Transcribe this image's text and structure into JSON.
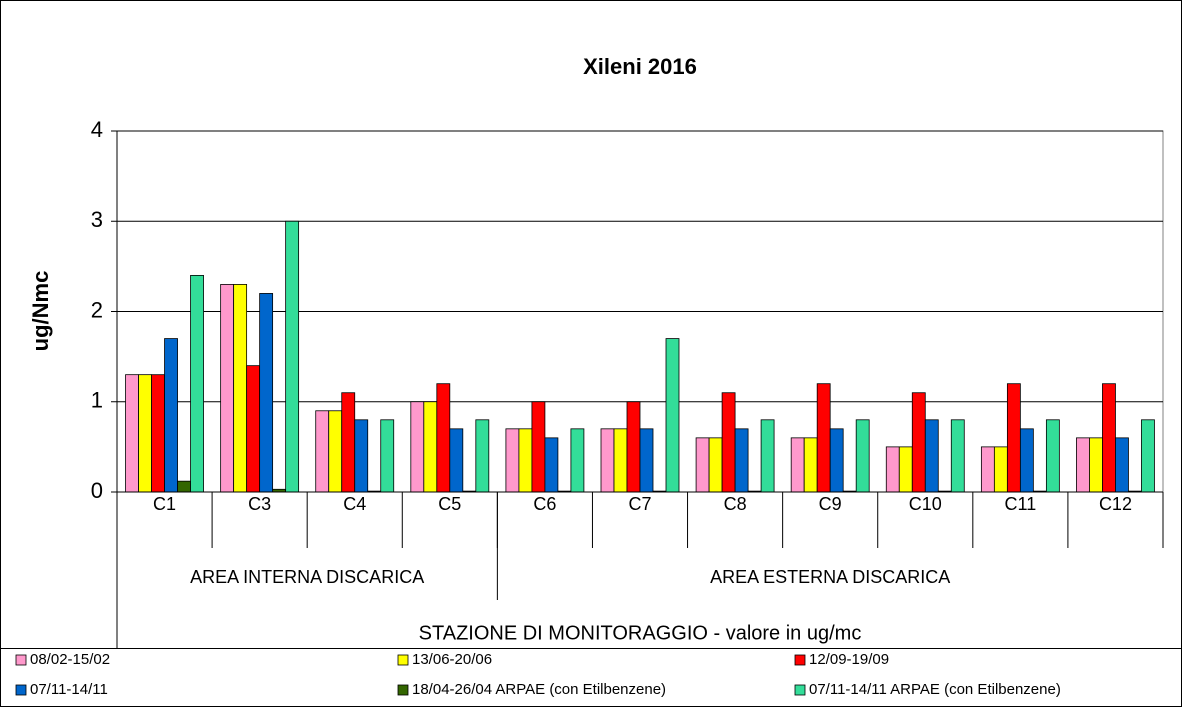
{
  "chart_data": {
    "type": "bar",
    "title": "Xileni 2016",
    "ylabel": "ug/Nmc",
    "xlabel": "STAZIONE DI MONITORAGGIO - valore in ug/mc",
    "categories": [
      "C1",
      "C3",
      "C4",
      "C5",
      "C6",
      "C7",
      "C8",
      "C9",
      "C10",
      "C11",
      "C12"
    ],
    "groups": [
      {
        "name": "AREA INTERNA DISCARICA",
        "categories": [
          "C1",
          "C3",
          "C4",
          "C5"
        ]
      },
      {
        "name": "AREA ESTERNA DISCARICA",
        "categories": [
          "C6",
          "C7",
          "C8",
          "C9",
          "C10",
          "C11",
          "C12"
        ]
      }
    ],
    "series": [
      {
        "name": "08/02-15/02",
        "color": "#ff99cc",
        "values": [
          1.3,
          2.3,
          0.9,
          1.0,
          0.7,
          0.7,
          0.6,
          0.6,
          0.5,
          0.5,
          0.6
        ]
      },
      {
        "name": "13/06-20/06",
        "color": "#ffff00",
        "values": [
          1.3,
          2.3,
          0.9,
          1.0,
          0.7,
          0.7,
          0.6,
          0.6,
          0.5,
          0.5,
          0.6
        ]
      },
      {
        "name": "12/09-19/09",
        "color": "#ff0000",
        "values": [
          1.3,
          1.4,
          1.1,
          1.2,
          1.0,
          1.0,
          1.1,
          1.2,
          1.1,
          1.2,
          1.2
        ]
      },
      {
        "name": "07/11-14/11",
        "color": "#0066cc",
        "values": [
          1.7,
          2.2,
          0.8,
          0.7,
          0.6,
          0.7,
          0.7,
          0.7,
          0.8,
          0.7,
          0.6
        ]
      },
      {
        "name": "18/04-26/04 ARPAE (con Etilbenzene)",
        "color": "#336600",
        "values": [
          0.12,
          0.03,
          0.01,
          0.01,
          0.01,
          0.01,
          0.01,
          0.01,
          0.01,
          0.01,
          0.01
        ]
      },
      {
        "name": "07/11-14/11 ARPAE (con Etilbenzene)",
        "color": "#33dd99",
        "values": [
          2.4,
          3.0,
          0.8,
          0.8,
          0.7,
          1.7,
          0.8,
          0.8,
          0.8,
          0.8,
          0.8
        ]
      }
    ],
    "ylim": [
      0,
      4
    ],
    "yticks": [
      0,
      1,
      2,
      3,
      4
    ],
    "grid": true
  }
}
